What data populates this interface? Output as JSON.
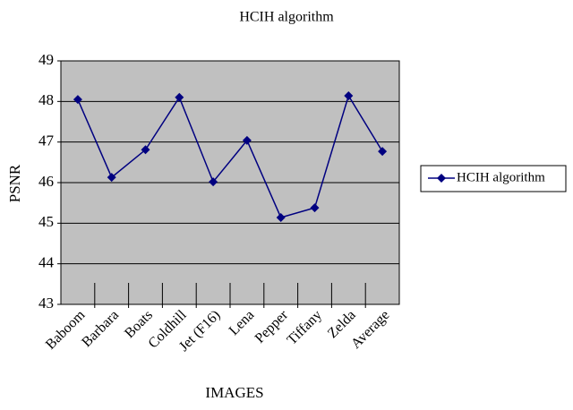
{
  "chart_data": {
    "type": "line",
    "title": "HCIH algorithm",
    "x_label": "IMAGES",
    "y_label": "PSNR",
    "categories": [
      "Baboom",
      "Barbara",
      "Boats",
      "Coldhill",
      "Jet (F16)",
      "Lena",
      "Pepper",
      "Tiffany",
      "Zelda",
      "Average"
    ],
    "series": [
      {
        "name": "HCIH algorithm",
        "color": "#000080",
        "values": [
          48.05,
          46.13,
          46.81,
          48.1,
          46.02,
          47.04,
          45.14,
          45.38,
          48.14,
          46.77
        ]
      }
    ],
    "ylim": [
      43,
      49
    ],
    "yticks": [
      43,
      44,
      45,
      46,
      47,
      48,
      49
    ],
    "grid": true,
    "legend": "right"
  }
}
